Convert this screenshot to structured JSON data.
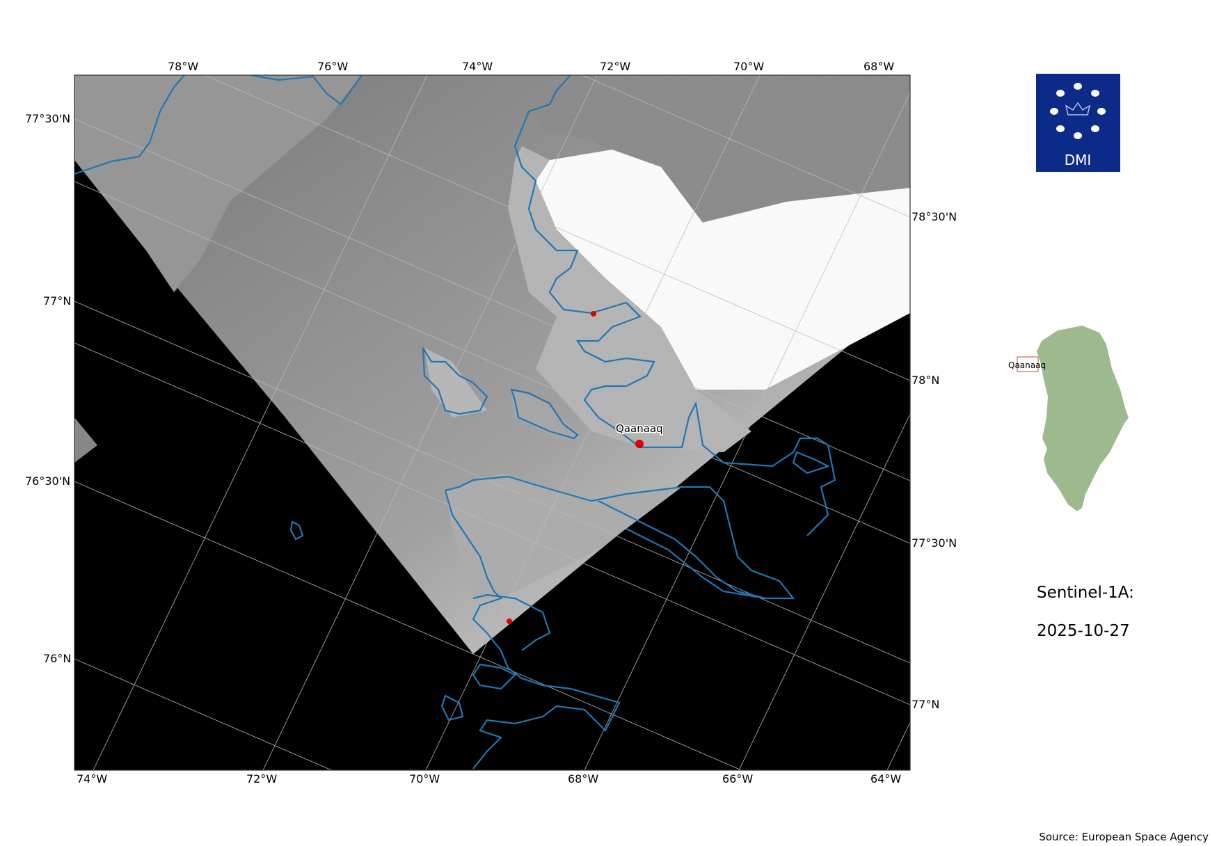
{
  "map": {
    "satellite": "Sentinel-1A:",
    "date": "2025-10-27",
    "source": "Source: European Space Agency",
    "place_label": "Qaanaaq",
    "inset_label": "Qaanaaq",
    "logo_text": "DMI",
    "top_lon_labels": [
      "78°W",
      "76°W",
      "74°W",
      "72°W",
      "70°W",
      "68°W"
    ],
    "bottom_lon_labels": [
      "74°W",
      "72°W",
      "70°W",
      "68°W",
      "66°W",
      "64°W"
    ],
    "left_lat_labels": [
      "77°30'N",
      "77°N",
      "76°30'N",
      "76°N"
    ],
    "right_lat_labels": [
      "78°30'N",
      "78°N",
      "77°30'N",
      "77°N"
    ],
    "colors": {
      "coastline": "#1f77b4",
      "logo_bg": "#0c2a87",
      "inset_land": "#9dba8f",
      "marker": "#e00000",
      "no_data": "#000000"
    }
  }
}
